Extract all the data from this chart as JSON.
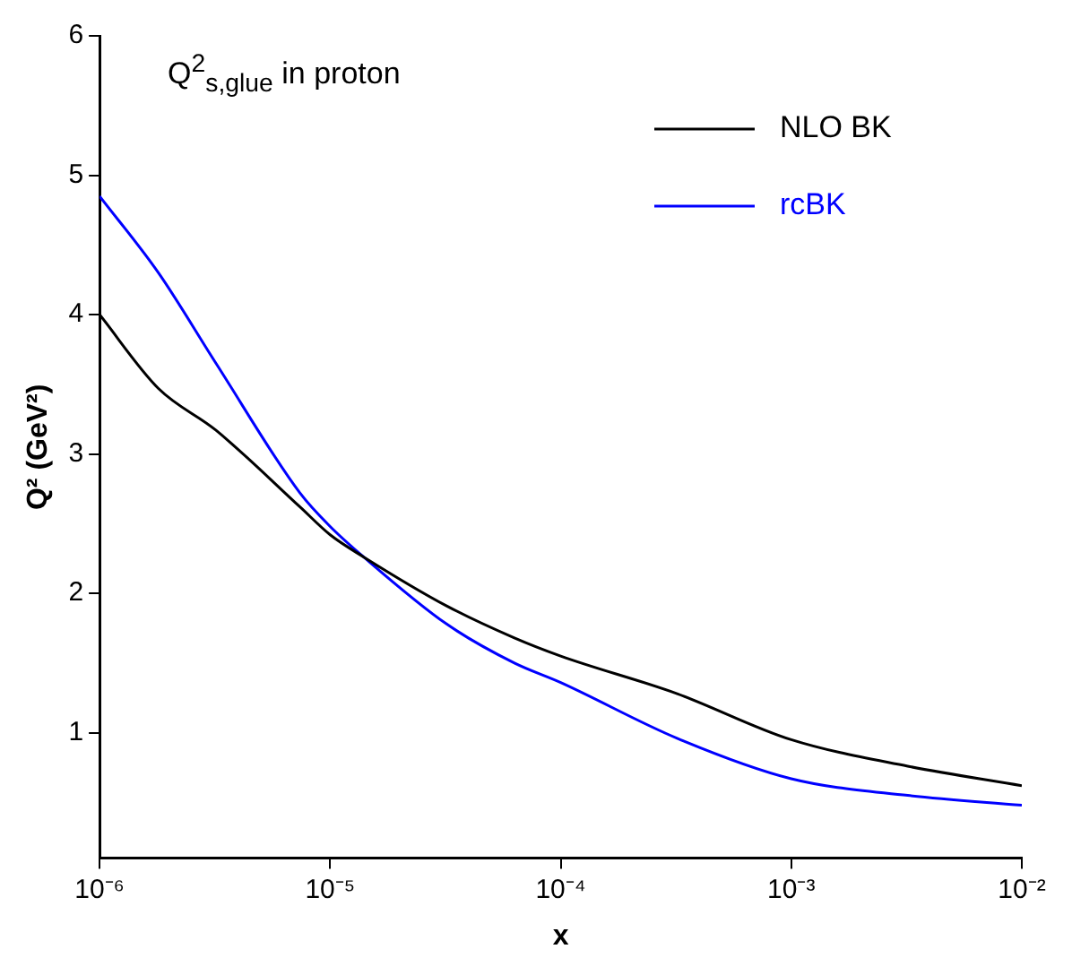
{
  "chart_data": {
    "type": "line",
    "title": "Q$^{2}$$_{s,glue}$ in proton",
    "xlabel": "x",
    "ylabel": "Q² (GeV²)",
    "log": "x",
    "xlim": [
      1e-06,
      0.01
    ],
    "ylim": [
      0.1,
      6
    ],
    "xticks": [
      {
        "value": 1e-06,
        "label": "10⁻⁶"
      },
      {
        "value": 1e-05,
        "label": "10⁻⁵"
      },
      {
        "value": 0.0001,
        "label": "10⁻⁴"
      },
      {
        "value": 0.001,
        "label": "10⁻³"
      },
      {
        "value": 0.01,
        "label": "10⁻²"
      }
    ],
    "yticks": [
      1,
      2,
      3,
      4,
      5,
      6
    ],
    "grid": false,
    "legend": "top right",
    "marker": "none",
    "line_style": "solid",
    "x": [
      1e-06,
      1.8e-06,
      3.2e-06,
      7.4e-06,
      1e-05,
      1.4e-05,
      3.2e-05,
      6.3e-05,
      0.0001,
      0.00032,
      0.001,
      0.0032,
      0.01
    ],
    "series": [
      {
        "name": "NLO BK",
        "color": "#000000",
        "values": [
          4.0,
          3.47,
          3.17,
          2.62,
          2.42,
          2.26,
          1.91,
          1.68,
          1.55,
          1.28,
          0.95,
          0.76,
          0.62
        ]
      },
      {
        "name": "rcBK",
        "color": "#0000ff",
        "values": [
          4.85,
          4.3,
          3.65,
          2.72,
          2.48,
          2.26,
          1.78,
          1.5,
          1.36,
          0.96,
          0.67,
          0.55,
          0.48
        ]
      }
    ]
  }
}
